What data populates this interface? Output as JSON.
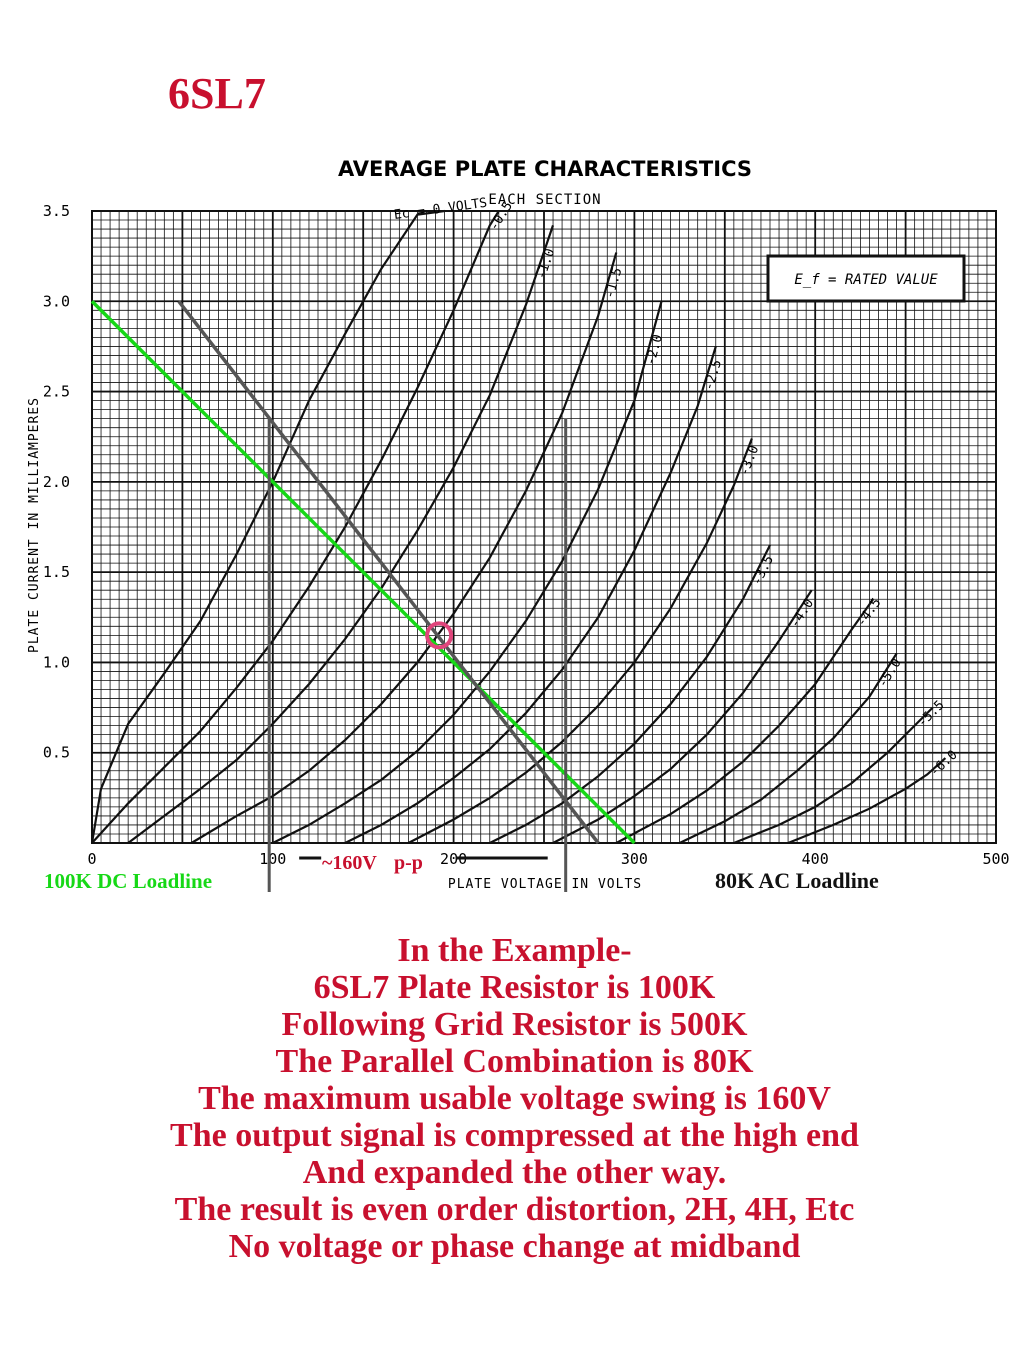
{
  "tube": {
    "name": "6SL7"
  },
  "chart_data": {
    "type": "line",
    "title": "AVERAGE PLATE CHARACTERISTICS",
    "subtitle": "EACH SECTION",
    "xlabel": "PLATE VOLTAGE IN VOLTS",
    "ylabel": "PLATE CURRENT IN MILLIAMPERES",
    "xlim": [
      0,
      500
    ],
    "ylim": [
      0,
      3.5
    ],
    "x_ticks": [
      "0",
      "100",
      "200",
      "300",
      "400",
      "500"
    ],
    "y_ticks": [
      "0.5",
      "1.0",
      "1.5",
      "2.0",
      "2.5",
      "3.0",
      "3.5"
    ],
    "grid": true,
    "legend_box": "E_f = RATED VALUE",
    "series": [
      {
        "name": "Ec = 0 VOLTS",
        "x": [
          0,
          5,
          20,
          40,
          60,
          80,
          100,
          120,
          140,
          160,
          180,
          195
        ],
        "y": [
          0,
          0.3,
          0.66,
          0.94,
          1.23,
          1.6,
          2.0,
          2.45,
          2.82,
          3.18,
          3.48,
          3.6
        ]
      },
      {
        "name": "-0.5",
        "x": [
          0,
          20,
          40,
          60,
          80,
          100,
          120,
          140,
          160,
          180,
          200,
          220,
          225
        ],
        "y": [
          0,
          0.22,
          0.42,
          0.62,
          0.86,
          1.12,
          1.42,
          1.75,
          2.12,
          2.52,
          2.95,
          3.42,
          3.55
        ]
      },
      {
        "name": "-1.0",
        "x": [
          20,
          40,
          60,
          80,
          100,
          120,
          140,
          160,
          180,
          200,
          220,
          240,
          255
        ],
        "y": [
          0,
          0.15,
          0.3,
          0.46,
          0.66,
          0.88,
          1.13,
          1.41,
          1.73,
          2.08,
          2.48,
          2.98,
          3.42
        ]
      },
      {
        "name": "-1.5",
        "x": [
          55,
          80,
          100,
          120,
          140,
          160,
          180,
          200,
          220,
          240,
          260,
          280,
          290
        ],
        "y": [
          0,
          0.15,
          0.26,
          0.4,
          0.57,
          0.77,
          1.0,
          1.27,
          1.58,
          1.95,
          2.38,
          2.92,
          3.27
        ]
      },
      {
        "name": "-2.0",
        "x": [
          100,
          120,
          140,
          160,
          180,
          200,
          220,
          240,
          260,
          280,
          300,
          315
        ],
        "y": [
          0,
          0.1,
          0.22,
          0.35,
          0.51,
          0.71,
          0.95,
          1.23,
          1.56,
          1.96,
          2.45,
          3.0
        ]
      },
      {
        "name": "-2.5",
        "x": [
          140,
          160,
          180,
          200,
          220,
          240,
          260,
          280,
          300,
          320,
          335,
          345
        ],
        "y": [
          0,
          0.1,
          0.22,
          0.36,
          0.52,
          0.72,
          0.96,
          1.25,
          1.62,
          2.05,
          2.42,
          2.75
        ]
      },
      {
        "name": "-3.0",
        "x": [
          175,
          200,
          220,
          240,
          260,
          280,
          300,
          320,
          340,
          355,
          365
        ],
        "y": [
          0,
          0.13,
          0.25,
          0.39,
          0.56,
          0.76,
          1.0,
          1.3,
          1.66,
          1.98,
          2.24
        ]
      },
      {
        "name": "-3.5",
        "x": [
          220,
          240,
          260,
          280,
          300,
          320,
          340,
          360,
          375
        ],
        "y": [
          0,
          0.1,
          0.22,
          0.37,
          0.55,
          0.77,
          1.03,
          1.35,
          1.65
        ]
      },
      {
        "name": "-4.0",
        "x": [
          255,
          280,
          300,
          320,
          340,
          360,
          380,
          398
        ],
        "y": [
          0,
          0.13,
          0.26,
          0.41,
          0.6,
          0.83,
          1.12,
          1.4
        ]
      },
      {
        "name": "-4.5",
        "x": [
          290,
          320,
          340,
          360,
          380,
          400,
          420,
          432
        ],
        "y": [
          0,
          0.16,
          0.29,
          0.45,
          0.65,
          0.88,
          1.18,
          1.35
        ]
      },
      {
        "name": "-5.0",
        "x": [
          325,
          350,
          370,
          390,
          410,
          430,
          445
        ],
        "y": [
          0,
          0.12,
          0.24,
          0.4,
          0.58,
          0.81,
          1.05
        ]
      },
      {
        "name": "-5.5",
        "x": [
          355,
          380,
          400,
          420,
          440,
          455,
          465
        ],
        "y": [
          0,
          0.1,
          0.2,
          0.33,
          0.5,
          0.65,
          0.75
        ]
      },
      {
        "name": "-6.0",
        "x": [
          385,
          410,
          430,
          450,
          462,
          472
        ],
        "y": [
          0,
          0.1,
          0.19,
          0.3,
          0.38,
          0.47
        ]
      }
    ],
    "loadlines": [
      {
        "name": "100K DC Loadline",
        "color": "#16d816",
        "x": [
          0,
          300
        ],
        "y": [
          3.0,
          0
        ]
      },
      {
        "name": "80K AC Loadline",
        "color": "#555555",
        "x": [
          48,
          280
        ],
        "y": [
          3.0,
          0
        ]
      }
    ],
    "q_point": {
      "x": 192,
      "y": 1.15,
      "color": "#e0457b"
    },
    "swing_markers": {
      "x": [
        98,
        262
      ],
      "color": "#555555"
    },
    "annotations": {
      "dc_loadline_label": "100K DC Loadline",
      "ac_loadline_label": "80K AC Loadline",
      "swing_label": "~160V",
      "swing_label_suffix": "p-p"
    }
  },
  "notes": [
    "In the Example-",
    "6SL7 Plate Resistor is 100K",
    "Following Grid Resistor is 500K",
    "The Parallel Combination is 80K",
    "The maximum usable voltage swing is 160V",
    "The output signal is compressed at the high end",
    "And expanded the other way.",
    "The result is even order distortion, 2H, 4H, Etc",
    "No voltage or phase change at midband"
  ]
}
